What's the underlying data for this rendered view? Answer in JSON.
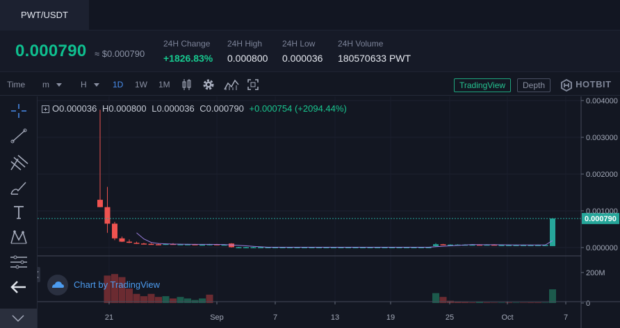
{
  "tab": {
    "label": "PWT/USDT"
  },
  "ticker": {
    "price": "0.000790",
    "approx": "≈ $0.000790",
    "stats": [
      {
        "label": "24H Change",
        "value": "+1826.83%"
      },
      {
        "label": "24H High",
        "value": "0.000800"
      },
      {
        "label": "24H Low",
        "value": "0.000036"
      },
      {
        "label": "24H Volume",
        "value": "180570633 PWT"
      }
    ]
  },
  "toolbar": {
    "time_label": "Time",
    "minute_label": "m",
    "hour_label": "H",
    "intervals": [
      "1D",
      "1W",
      "1M"
    ],
    "tradingview_label": "TradingView",
    "depth_label": "Depth",
    "brand": "HOTBIT",
    "icons": [
      "candle-type-icon",
      "gear-icon",
      "indicators-icon",
      "screenshot-icon"
    ]
  },
  "legend": {
    "o": "O0.000036",
    "h": "H0.000800",
    "l": "L0.000036",
    "c": "C0.000790",
    "change": "+0.000754 (+2094.44%)"
  },
  "watermark": "Chart by TradingView",
  "left_tools": [
    "crosshair-icon",
    "trend-line-icon",
    "pitchfork-icon",
    "brush-icon",
    "text-icon",
    "pattern-icon",
    "measure-icon",
    "back-arrow-icon"
  ],
  "colors": {
    "up": "#26a69a",
    "down": "#ef5350",
    "accent": "#0fbf8f",
    "link": "#4c9cf0"
  },
  "chart_data": {
    "type": "candlestick",
    "x_ticks": [
      "21",
      "Sep",
      "7",
      "13",
      "19",
      "25",
      "Oct",
      "7"
    ],
    "price_ticks": [
      "0.004000",
      "0.003000",
      "0.002000",
      "0.001000",
      "0.000000"
    ],
    "price_range": [
      0,
      0.004
    ],
    "volume_ticks": [
      "200M",
      "0"
    ],
    "volume_range": [
      0,
      300000000
    ],
    "last_price_label": "0.000790",
    "last_price": 0.00079,
    "candles": [
      {
        "o": 0.0013,
        "h": 0.00375,
        "l": 0.0011,
        "c": 0.0011
      },
      {
        "o": 0.0011,
        "h": 0.00165,
        "l": 0.0004,
        "c": 0.00065
      },
      {
        "o": 0.00065,
        "h": 0.0007,
        "l": 0.0002,
        "c": 0.00025
      },
      {
        "o": 0.00025,
        "h": 0.0003,
        "l": 0.00015,
        "c": 0.00016
      },
      {
        "o": 0.00016,
        "h": 0.00022,
        "l": 0.00012,
        "c": 0.00013
      },
      {
        "o": 0.00013,
        "h": 0.00016,
        "l": 0.0001,
        "c": 0.00011
      },
      {
        "o": 0.00011,
        "h": 0.00013,
        "l": 9e-05,
        "c": 0.0001
      },
      {
        "o": 0.0001,
        "h": 0.00012,
        "l": 8e-05,
        "c": 9e-05
      },
      {
        "o": 9e-05,
        "h": 0.00011,
        "l": 7e-05,
        "c": 8e-05
      },
      {
        "o": 8e-05,
        "h": 0.00011,
        "l": 7e-05,
        "c": 0.0001
      },
      {
        "o": 0.0001,
        "h": 0.00012,
        "l": 8e-05,
        "c": 9e-05
      },
      {
        "o": 9e-05,
        "h": 0.0001,
        "l": 8e-05,
        "c": 9e-05
      },
      {
        "o": 9e-05,
        "h": 0.0001,
        "l": 8e-05,
        "c": 9e-05
      },
      {
        "o": 9e-05,
        "h": 0.0001,
        "l": 8e-05,
        "c": 8e-05
      },
      {
        "o": 8e-05,
        "h": 9e-05,
        "l": 7e-05,
        "c": 8e-05
      },
      {
        "o": 8e-05,
        "h": 0.0001,
        "l": 6e-05,
        "c": 9e-05
      },
      {
        "o": 9e-05,
        "h": 0.0001,
        "l": 7e-05,
        "c": 8e-05
      },
      {
        "o": 8e-05,
        "h": 9e-05,
        "l": 7e-05,
        "c": 8e-05
      },
      {
        "o": 0.00011,
        "h": 0.00012,
        "l": 0.0,
        "c": 1e-05
      },
      {
        "o": 1e-05,
        "h": 2e-05,
        "l": 1e-05,
        "c": 1e-05
      },
      {
        "o": 1e-05,
        "h": 2e-05,
        "l": 1e-05,
        "c": 1e-05
      },
      {
        "o": 1e-05,
        "h": 2e-05,
        "l": 1e-05,
        "c": 1e-05
      },
      {
        "o": 1e-05,
        "h": 2e-05,
        "l": 1e-05,
        "c": 1e-05
      },
      {
        "o": 1e-05,
        "h": 2e-05,
        "l": 1e-05,
        "c": 1e-05
      },
      {
        "o": 1e-05,
        "h": 2e-05,
        "l": 1e-05,
        "c": 1e-05
      },
      {
        "o": 1e-05,
        "h": 2e-05,
        "l": 1e-05,
        "c": 1e-05
      },
      {
        "o": 1e-05,
        "h": 2e-05,
        "l": 1e-05,
        "c": 1e-05
      },
      {
        "o": 1e-05,
        "h": 2e-05,
        "l": 1e-05,
        "c": 1e-05
      },
      {
        "o": 1e-05,
        "h": 2e-05,
        "l": 1e-05,
        "c": 1e-05
      },
      {
        "o": 1e-05,
        "h": 2e-05,
        "l": 1e-05,
        "c": 1e-05
      },
      {
        "o": 1e-05,
        "h": 2e-05,
        "l": 1e-05,
        "c": 1e-05
      },
      {
        "o": 1e-05,
        "h": 2e-05,
        "l": 1e-05,
        "c": 1e-05
      },
      {
        "o": 1e-05,
        "h": 2e-05,
        "l": 1e-05,
        "c": 1e-05
      },
      {
        "o": 1e-05,
        "h": 2e-05,
        "l": 1e-05,
        "c": 1e-05
      },
      {
        "o": 1e-05,
        "h": 2e-05,
        "l": 1e-05,
        "c": 1e-05
      },
      {
        "o": 1e-05,
        "h": 2e-05,
        "l": 1e-05,
        "c": 1e-05
      },
      {
        "o": 1e-05,
        "h": 2e-05,
        "l": 1e-05,
        "c": 1e-05
      },
      {
        "o": 1e-05,
        "h": 2e-05,
        "l": 1e-05,
        "c": 1e-05
      },
      {
        "o": 1e-05,
        "h": 2e-05,
        "l": 1e-05,
        "c": 1e-05
      },
      {
        "o": 1e-05,
        "h": 2e-05,
        "l": 1e-05,
        "c": 1e-05
      },
      {
        "o": 1e-05,
        "h": 2e-05,
        "l": 1e-05,
        "c": 1e-05
      },
      {
        "o": 1e-05,
        "h": 2e-05,
        "l": 1e-05,
        "c": 1e-05
      },
      {
        "o": 1e-05,
        "h": 2e-05,
        "l": 1e-05,
        "c": 1e-05
      },
      {
        "o": 1e-05,
        "h": 2e-05,
        "l": 1e-05,
        "c": 1e-05
      },
      {
        "o": 1e-05,
        "h": 2e-05,
        "l": 1e-05,
        "c": 1e-05
      },
      {
        "o": 1e-05,
        "h": 2e-05,
        "l": 1e-05,
        "c": 1e-05
      },
      {
        "o": 4e-05,
        "h": 0.00012,
        "l": 3e-05,
        "c": 9e-05
      },
      {
        "o": 9e-05,
        "h": 0.0001,
        "l": 7e-05,
        "c": 8e-05
      },
      {
        "o": 8e-05,
        "h": 9e-05,
        "l": 7e-05,
        "c": 8e-05
      },
      {
        "o": 8e-05,
        "h": 9e-05,
        "l": 7e-05,
        "c": 8e-05
      },
      {
        "o": 8e-05,
        "h": 9e-05,
        "l": 7e-05,
        "c": 8e-05
      },
      {
        "o": 8e-05,
        "h": 9e-05,
        "l": 7e-05,
        "c": 8e-05
      },
      {
        "o": 8e-05,
        "h": 9e-05,
        "l": 7e-05,
        "c": 7e-05
      },
      {
        "o": 7e-05,
        "h": 9e-05,
        "l": 6e-05,
        "c": 8e-05
      },
      {
        "o": 8e-05,
        "h": 9e-05,
        "l": 7e-05,
        "c": 7e-05
      },
      {
        "o": 7e-05,
        "h": 8e-05,
        "l": 6e-05,
        "c": 7e-05
      },
      {
        "o": 7e-05,
        "h": 8e-05,
        "l": 6e-05,
        "c": 7e-05
      },
      {
        "o": 7e-05,
        "h": 8e-05,
        "l": 6e-05,
        "c": 7e-05
      },
      {
        "o": 7e-05,
        "h": 8e-05,
        "l": 6e-05,
        "c": 7e-05
      },
      {
        "o": 7e-05,
        "h": 8e-05,
        "l": 6e-05,
        "c": 7e-05
      },
      {
        "o": 7e-05,
        "h": 8e-05,
        "l": 6e-05,
        "c": 7e-05
      },
      {
        "o": 7e-05,
        "h": 8e-05,
        "l": 6e-05,
        "c": 7e-05
      },
      {
        "o": 4e-05,
        "h": 0.0008,
        "l": 4e-05,
        "c": 0.00079
      }
    ],
    "volumes": [
      {
        "v": 0,
        "up": false
      },
      {
        "v": 180000000,
        "up": false
      },
      {
        "v": 190000000,
        "up": false
      },
      {
        "v": 170000000,
        "up": false
      },
      {
        "v": 95000000,
        "up": false
      },
      {
        "v": 60000000,
        "up": false
      },
      {
        "v": 45000000,
        "up": false
      },
      {
        "v": 60000000,
        "up": false
      },
      {
        "v": 40000000,
        "up": false
      },
      {
        "v": 45000000,
        "up": true
      },
      {
        "v": 30000000,
        "up": false
      },
      {
        "v": 40000000,
        "up": true
      },
      {
        "v": 30000000,
        "up": true
      },
      {
        "v": 20000000,
        "up": true
      },
      {
        "v": 30000000,
        "up": true
      },
      {
        "v": 55000000,
        "up": false
      },
      {
        "v": 0,
        "up": false
      },
      {
        "v": 0,
        "up": false
      },
      {
        "v": 0,
        "up": false
      },
      {
        "v": 0,
        "up": false
      },
      {
        "v": 0,
        "up": false
      },
      {
        "v": 0,
        "up": false
      },
      {
        "v": 0,
        "up": false
      },
      {
        "v": 0,
        "up": false
      },
      {
        "v": 0,
        "up": false
      },
      {
        "v": 0,
        "up": false
      },
      {
        "v": 0,
        "up": false
      },
      {
        "v": 0,
        "up": false
      },
      {
        "v": 0,
        "up": false
      },
      {
        "v": 0,
        "up": false
      },
      {
        "v": 0,
        "up": false
      },
      {
        "v": 0,
        "up": false
      },
      {
        "v": 0,
        "up": false
      },
      {
        "v": 0,
        "up": false
      },
      {
        "v": 0,
        "up": false
      },
      {
        "v": 0,
        "up": false
      },
      {
        "v": 0,
        "up": false
      },
      {
        "v": 0,
        "up": false
      },
      {
        "v": 0,
        "up": false
      },
      {
        "v": 0,
        "up": false
      },
      {
        "v": 0,
        "up": false
      },
      {
        "v": 0,
        "up": false
      },
      {
        "v": 0,
        "up": false
      },
      {
        "v": 0,
        "up": false
      },
      {
        "v": 0,
        "up": false
      },
      {
        "v": 0,
        "up": false
      },
      {
        "v": 65000000,
        "up": true
      },
      {
        "v": 40000000,
        "up": false
      },
      {
        "v": 15000000,
        "up": false
      },
      {
        "v": 10000000,
        "up": false
      },
      {
        "v": 6000000,
        "up": false
      },
      {
        "v": 4000000,
        "up": false
      },
      {
        "v": 6000000,
        "up": true
      },
      {
        "v": 4000000,
        "up": false
      },
      {
        "v": 3000000,
        "up": false
      },
      {
        "v": 3000000,
        "up": true
      },
      {
        "v": 4000000,
        "up": false
      },
      {
        "v": 3000000,
        "up": true
      },
      {
        "v": 3000000,
        "up": false
      },
      {
        "v": 4000000,
        "up": false
      },
      {
        "v": 4000000,
        "up": false
      },
      {
        "v": 3000000,
        "up": true
      },
      {
        "v": 90000000,
        "up": true
      }
    ]
  }
}
